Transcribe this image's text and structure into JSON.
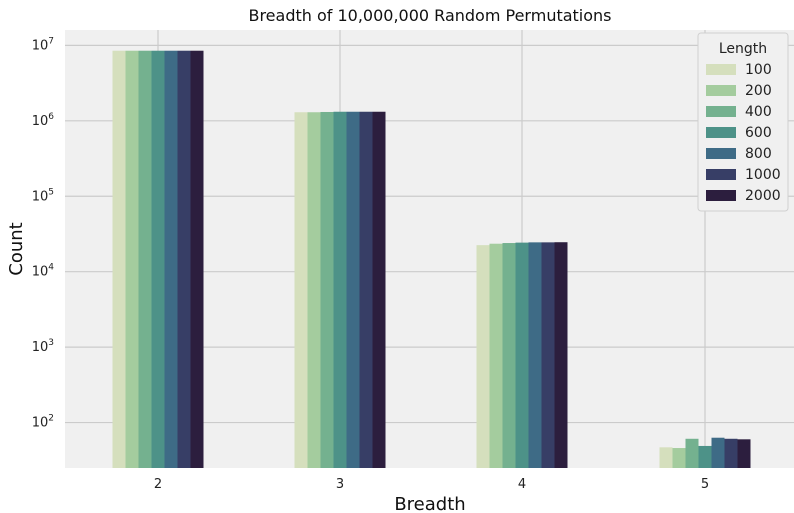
{
  "chart_data": {
    "type": "bar",
    "title": "Breadth of 10,000,000 Random Permutations",
    "xlabel": "Breadth",
    "ylabel": "Count",
    "yscale": "log",
    "ylim": [
      25,
      16000000
    ],
    "yticks": [
      {
        "value": 100,
        "base": "10",
        "exp": "2"
      },
      {
        "value": 1000,
        "base": "10",
        "exp": "3"
      },
      {
        "value": 10000,
        "base": "10",
        "exp": "4"
      },
      {
        "value": 100000,
        "base": "10",
        "exp": "5"
      },
      {
        "value": 1000000,
        "base": "10",
        "exp": "6"
      },
      {
        "value": 10000000,
        "base": "10",
        "exp": "7"
      }
    ],
    "categories": [
      "2",
      "3",
      "4",
      "5"
    ],
    "legend_title": "Length",
    "legend_position": "top-right",
    "grid": true,
    "series": [
      {
        "name": "100",
        "color": "#d5dfbd",
        "values": [
          8500000,
          1300000,
          22500,
          47
        ]
      },
      {
        "name": "200",
        "color": "#a4cc9e",
        "values": [
          8500000,
          1300000,
          23500,
          46
        ]
      },
      {
        "name": "400",
        "color": "#74b18f",
        "values": [
          8500000,
          1310000,
          24000,
          61
        ]
      },
      {
        "name": "600",
        "color": "#4d9288",
        "values": [
          8500000,
          1320000,
          24300,
          49
        ]
      },
      {
        "name": "800",
        "color": "#3e6b86",
        "values": [
          8500000,
          1320000,
          24500,
          63
        ]
      },
      {
        "name": "1000",
        "color": "#373e66",
        "values": [
          8500000,
          1320000,
          24500,
          61
        ]
      },
      {
        "name": "2000",
        "color": "#2c1e3e",
        "values": [
          8500000,
          1320000,
          24600,
          60
        ]
      }
    ]
  }
}
